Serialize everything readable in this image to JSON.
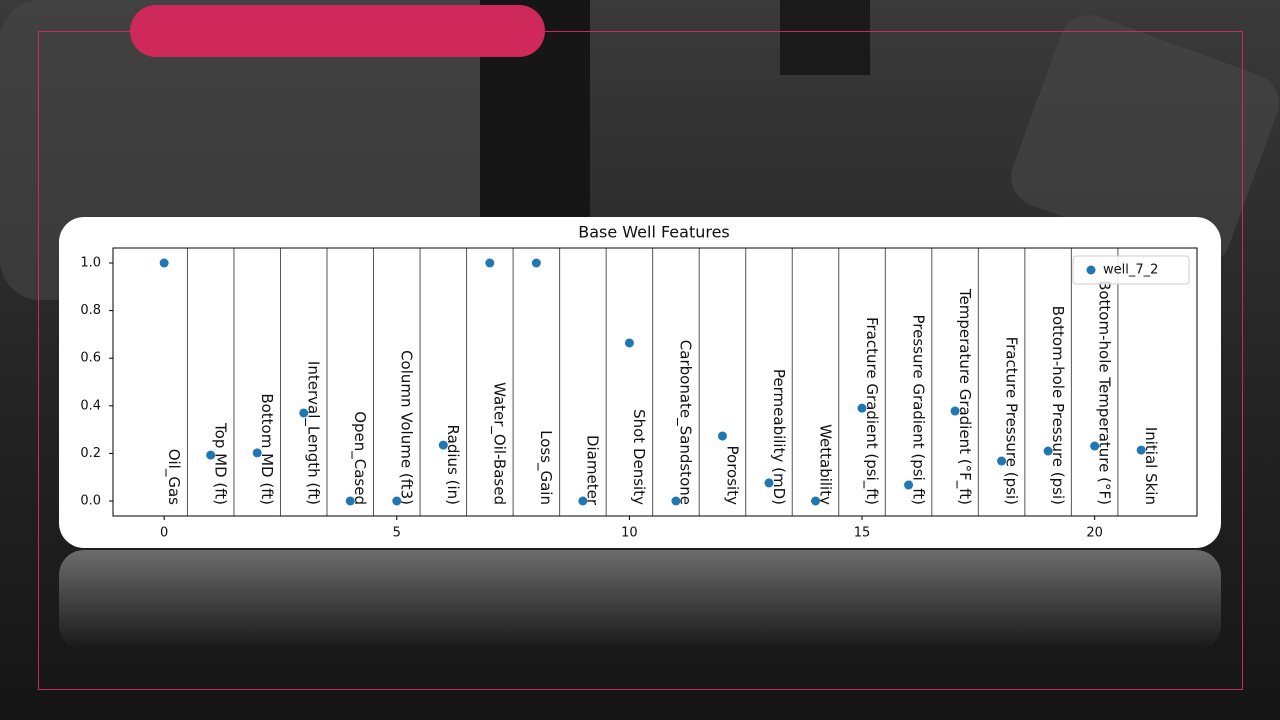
{
  "chart_data": {
    "type": "scatter",
    "title": "Base Well Features",
    "categories": [
      "Oil_Gas",
      "Top MD (ft)",
      "Bottom MD (ft)",
      "Interval_Length (ft)",
      "Open_Cased",
      "Column Volume (ft3)",
      "Radius (in)",
      "Water_Oil-Based",
      "Loss_Gain",
      "Diameter",
      "Shot Density",
      "Carbonate_Sandstone",
      "Porosity",
      "Permeability (mD)",
      "Wettability",
      "Fracture Gradient (psi_ft)",
      "Pressure Gradient (psi_ft)",
      "Temperature Gradient (°F_ft)",
      "Fracture Pressure (psi)",
      "Bottom-hole Pressure (psi)",
      "Bottom-hole Temperature (°F)",
      "Initial Skin"
    ],
    "x": [
      0,
      1,
      2,
      3,
      4,
      5,
      6,
      7,
      8,
      9,
      10,
      11,
      12,
      13,
      14,
      15,
      16,
      17,
      18,
      19,
      20,
      21
    ],
    "series": [
      {
        "name": "well_7_2",
        "color": "#1f77b4",
        "values": [
          1.0,
          0.193,
          0.202,
          0.37,
          0,
          0,
          0.235,
          1.0,
          1.0,
          0,
          0.664,
          0,
          0.273,
          0.076,
          0,
          0.39,
          0.067,
          0.378,
          0.168,
          0.21,
          0.231,
          0.214
        ]
      }
    ],
    "xlim": [
      -1.1,
      22.2
    ],
    "ylim": [
      -0.063,
      1.063
    ],
    "xticks": [
      0,
      5,
      10,
      15,
      20
    ],
    "yticks": [
      {
        "value": 0,
        "label": "0.0"
      },
      {
        "value": 0.2,
        "label": "0.2"
      },
      {
        "value": 0.4,
        "label": "0.4"
      },
      {
        "value": 0.6,
        "label": "0.6"
      },
      {
        "value": 0.8,
        "label": "0.8"
      },
      {
        "value": 1.0,
        "label": "1.0"
      }
    ],
    "legend": "upper right"
  }
}
